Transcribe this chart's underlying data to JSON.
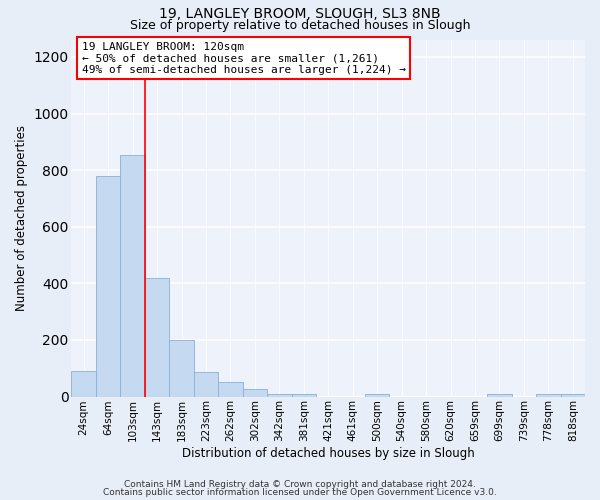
{
  "title_line1": "19, LANGLEY BROOM, SLOUGH, SL3 8NB",
  "title_line2": "Size of property relative to detached houses in Slough",
  "xlabel": "Distribution of detached houses by size in Slough",
  "ylabel": "Number of detached properties",
  "categories": [
    "24sqm",
    "64sqm",
    "103sqm",
    "143sqm",
    "183sqm",
    "223sqm",
    "262sqm",
    "302sqm",
    "342sqm",
    "381sqm",
    "421sqm",
    "461sqm",
    "500sqm",
    "540sqm",
    "580sqm",
    "620sqm",
    "659sqm",
    "699sqm",
    "739sqm",
    "778sqm",
    "818sqm"
  ],
  "values": [
    90,
    780,
    855,
    420,
    200,
    85,
    50,
    25,
    10,
    10,
    0,
    0,
    10,
    0,
    0,
    0,
    0,
    10,
    0,
    10,
    10
  ],
  "bar_color": "#c5d9f0",
  "bar_edge_color": "#8ab0d8",
  "red_line_x": 2.5,
  "annotation_line1": "19 LANGLEY BROOM: 120sqm",
  "annotation_line2": "← 50% of detached houses are smaller (1,261)",
  "annotation_line3": "49% of semi-detached houses are larger (1,224) →",
  "ylim": [
    0,
    1260
  ],
  "yticks": [
    0,
    200,
    400,
    600,
    800,
    1000,
    1200
  ],
  "footer_line1": "Contains HM Land Registry data © Crown copyright and database right 2024.",
  "footer_line2": "Contains public sector information licensed under the Open Government Licence v3.0.",
  "bg_color": "#e8eef8",
  "plot_bg_color": "#eef3fb",
  "grid_color": "#ffffff",
  "title_fontsize": 10,
  "subtitle_fontsize": 9,
  "axis_label_fontsize": 8.5,
  "tick_fontsize": 7.5,
  "annotation_fontsize": 8,
  "footer_fontsize": 6.5
}
